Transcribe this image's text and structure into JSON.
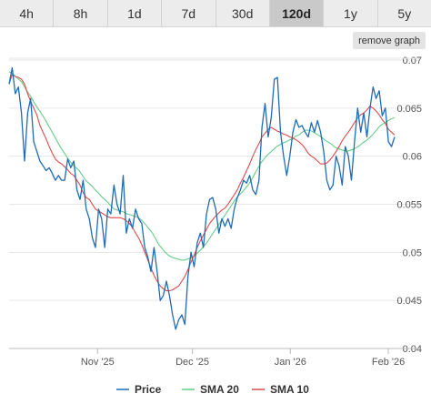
{
  "tabs": {
    "items": [
      {
        "label": "4h"
      },
      {
        "label": "8h"
      },
      {
        "label": "1d"
      },
      {
        "label": "7d"
      },
      {
        "label": "30d"
      },
      {
        "label": "120d",
        "active": true
      },
      {
        "label": "1y"
      },
      {
        "label": "5y"
      }
    ]
  },
  "remove_graph_label": "remove graph",
  "colors": {
    "price": "#1f6bb5",
    "sma20": "#66cc88",
    "sma10": "#e04a4a",
    "grid": "#e6e6e6",
    "axis": "#bbbbbb"
  },
  "chart_data": {
    "type": "line",
    "title": "",
    "xlabel": "",
    "ylabel": "",
    "ylim": [
      0.04,
      0.07
    ],
    "yticks": [
      {
        "value": 0.07,
        "label": "0.07"
      },
      {
        "value": 0.065,
        "label": "0.065"
      },
      {
        "value": 0.06,
        "label": "0.06"
      },
      {
        "value": 0.055,
        "label": "0.055"
      },
      {
        "value": 0.05,
        "label": "0.05"
      },
      {
        "value": 0.045,
        "label": "0.045"
      },
      {
        "value": 0.04,
        "label": "0.04"
      }
    ],
    "xticks": [
      {
        "day": 30,
        "label": "Nov '25"
      },
      {
        "day": 60,
        "label": "Dec '25"
      },
      {
        "day": 91,
        "label": "Jan '26"
      },
      {
        "day": 122,
        "label": "Feb '26"
      }
    ],
    "x_start_day": 2,
    "x_end_day": 124,
    "grid": true,
    "legend": "bottom",
    "series": [
      {
        "name": "Price",
        "color": "#1f6bb5",
        "values": [
          0.0675,
          0.0692,
          0.0665,
          0.0672,
          0.0645,
          0.0595,
          0.0645,
          0.066,
          0.0615,
          0.0605,
          0.0595,
          0.059,
          0.0585,
          0.0588,
          0.0582,
          0.0575,
          0.058,
          0.0575,
          0.0575,
          0.0597,
          0.0588,
          0.0595,
          0.0565,
          0.0555,
          0.0575,
          0.0545,
          0.0535,
          0.0515,
          0.0505,
          0.0545,
          0.0535,
          0.0505,
          0.0545,
          0.054,
          0.057,
          0.055,
          0.054,
          0.058,
          0.052,
          0.0535,
          0.0525,
          0.0545,
          0.0535,
          0.053,
          0.0505,
          0.0495,
          0.048,
          0.0505,
          0.048,
          0.045,
          0.0455,
          0.047,
          0.0455,
          0.0435,
          0.042,
          0.043,
          0.0435,
          0.0425,
          0.0475,
          0.05,
          0.0485,
          0.051,
          0.052,
          0.0505,
          0.054,
          0.0555,
          0.0557,
          0.0545,
          0.052,
          0.0535,
          0.0527,
          0.0535,
          0.0525,
          0.0545,
          0.0557,
          0.0565,
          0.0575,
          0.0572,
          0.058,
          0.0565,
          0.056,
          0.0575,
          0.063,
          0.0655,
          0.062,
          0.064,
          0.068,
          0.0682,
          0.0625,
          0.06,
          0.058,
          0.06,
          0.0625,
          0.0638,
          0.063,
          0.0632,
          0.0625,
          0.062,
          0.0635,
          0.0625,
          0.0637,
          0.0625,
          0.0605,
          0.0575,
          0.0565,
          0.057,
          0.06,
          0.059,
          0.057,
          0.061,
          0.06,
          0.0575,
          0.0615,
          0.065,
          0.0625,
          0.0645,
          0.062,
          0.065,
          0.0672,
          0.066,
          0.0668,
          0.0642,
          0.065,
          0.0615,
          0.061,
          0.062
        ]
      },
      {
        "name": "SMA 20",
        "color": "#66cc88",
        "values": [
          0.0688,
          0.0686,
          0.0683,
          0.068,
          0.0677,
          0.0671,
          0.0666,
          0.0661,
          0.0655,
          0.065,
          0.0645,
          0.064,
          0.0634,
          0.0628,
          0.0622,
          0.0616,
          0.061,
          0.0605,
          0.06,
          0.0595,
          0.0591,
          0.0588,
          0.0585,
          0.058,
          0.0575,
          0.0572,
          0.0569,
          0.0565,
          0.0562,
          0.0558,
          0.0555,
          0.0552,
          0.0548,
          0.0545,
          0.0544,
          0.0543,
          0.0542,
          0.054,
          0.0539,
          0.0538,
          0.0537,
          0.0535,
          0.0532,
          0.0528,
          0.0524,
          0.052,
          0.0514,
          0.0508,
          0.0504,
          0.05,
          0.0497,
          0.0495,
          0.0494,
          0.0493,
          0.0492,
          0.0492,
          0.0493,
          0.0494,
          0.0496,
          0.0499,
          0.0502,
          0.0506,
          0.051,
          0.0515,
          0.052,
          0.0525,
          0.053,
          0.0535,
          0.054,
          0.0545,
          0.055,
          0.0555,
          0.0559,
          0.0562,
          0.0566,
          0.057,
          0.0575,
          0.0581,
          0.0587,
          0.0593,
          0.0597,
          0.0601,
          0.0604,
          0.0607,
          0.061,
          0.0612,
          0.0614,
          0.0615,
          0.0617,
          0.0618,
          0.0621,
          0.0622,
          0.0625,
          0.0627,
          0.0627,
          0.0626,
          0.0624,
          0.0622,
          0.062,
          0.0617,
          0.0615,
          0.0613,
          0.061,
          0.0608,
          0.0607,
          0.0606,
          0.0605,
          0.0606,
          0.0607,
          0.0609,
          0.0611,
          0.0614,
          0.0616,
          0.0619,
          0.0622,
          0.0626,
          0.063,
          0.0633,
          0.0635,
          0.0637,
          0.0639,
          0.064
        ]
      },
      {
        "name": "SMA 10",
        "color": "#e04a4a",
        "values": [
          0.0675,
          0.0685,
          0.0683,
          0.0682,
          0.068,
          0.0675,
          0.0665,
          0.0657,
          0.065,
          0.0643,
          0.0632,
          0.0625,
          0.0618,
          0.061,
          0.0603,
          0.0597,
          0.0594,
          0.0592,
          0.0589,
          0.0586,
          0.0582,
          0.058,
          0.0575,
          0.057,
          0.0562,
          0.0557,
          0.0555,
          0.055,
          0.0545,
          0.0543,
          0.0541,
          0.0539,
          0.0537,
          0.0536,
          0.0536,
          0.0536,
          0.0536,
          0.0535,
          0.0533,
          0.053,
          0.0526,
          0.052,
          0.0515,
          0.0508,
          0.05,
          0.0492,
          0.0484,
          0.0476,
          0.047,
          0.0465,
          0.0462,
          0.046,
          0.046,
          0.0461,
          0.0463,
          0.0465,
          0.047,
          0.0475,
          0.0482,
          0.049,
          0.0497,
          0.0505,
          0.0512,
          0.0518,
          0.0524,
          0.053,
          0.0534,
          0.0538,
          0.0541,
          0.0544,
          0.0546,
          0.055,
          0.0555,
          0.056,
          0.0565,
          0.0572,
          0.0578,
          0.0585,
          0.0592,
          0.06,
          0.0607,
          0.0613,
          0.062,
          0.0624,
          0.0628,
          0.063,
          0.0628,
          0.0626,
          0.0625,
          0.0623,
          0.0622,
          0.062,
          0.0619,
          0.0617,
          0.0615,
          0.0612,
          0.0608,
          0.0603,
          0.06,
          0.0598,
          0.0595,
          0.0592,
          0.0592,
          0.0593,
          0.0596,
          0.06,
          0.0605,
          0.061,
          0.0616,
          0.0621,
          0.0625,
          0.063,
          0.0635,
          0.064,
          0.0643,
          0.0645,
          0.0648,
          0.0652,
          0.065,
          0.0647,
          0.0643,
          0.0638,
          0.0634,
          0.0628,
          0.0625,
          0.0622
        ]
      }
    ]
  }
}
